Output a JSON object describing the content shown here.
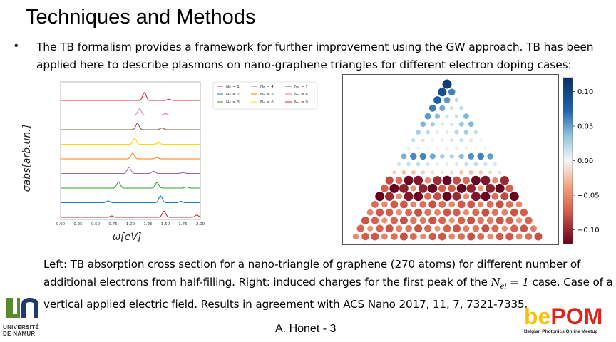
{
  "slide": {
    "title": "Techniques and Methods",
    "bullet": "The TB formalism provides a framework for further improvement using the GW approach. TB has been applied here to describe plasmons on nano-graphene triangles for different electron doping cases:",
    "caption": {
      "part1": "Left: TB absorption cross section for a nano-triangle of graphene (270 atoms) for different number of additional electrons from half-filling. Right: induced charges for the first peak of the ",
      "math": "N",
      "math_sub": "el",
      "math_rest": " = 1",
      "part2": " case. Case of a vertical applied electric field. Results in agreement with ACS Nano 2017, 11, 7, 7321-7335."
    },
    "footer": "A. Honet  - 3"
  },
  "logos": {
    "left": {
      "line1": "UNIVERSITÉ",
      "line2": "DE NAMUR"
    },
    "right": {
      "be": "be",
      "pom": "POM",
      "tagline": "Belgian Photonics Online Meetup"
    }
  },
  "chart_data": [
    {
      "type": "line",
      "ylabel": "σabs[arb.un.]",
      "xlabel": "ω[eV]",
      "xticks": [
        "0.00",
        "0.25",
        "0.50",
        "0.75",
        "1.00",
        "1.25",
        "1.50",
        "1.75",
        "2.00"
      ],
      "xlim": [
        0,
        2
      ],
      "series": [
        {
          "name": "Nₑₗ = 1",
          "color": "#d62728",
          "peaks": [
            [
              0.73,
              0.12
            ],
            [
              1.48,
              0.55
            ],
            [
              1.95,
              0.2
            ]
          ]
        },
        {
          "name": "Nₑₗ = 2",
          "color": "#1f77b4",
          "peaks": [
            [
              0.68,
              0.15
            ],
            [
              1.43,
              0.6
            ],
            [
              1.72,
              0.12
            ]
          ]
        },
        {
          "name": "Nₑₗ = 3",
          "color": "#2ca02c",
          "peaks": [
            [
              0.83,
              0.55
            ],
            [
              1.38,
              0.5
            ],
            [
              1.8,
              0.1
            ]
          ]
        },
        {
          "name": "Nₑₗ = 4",
          "color": "#9467bd",
          "peaks": [
            [
              0.98,
              0.55
            ],
            [
              1.33,
              0.2
            ],
            [
              1.75,
              0.08
            ]
          ]
        },
        {
          "name": "Nₑₗ = 5",
          "color": "#ff7f0e",
          "peaks": [
            [
              1.03,
              0.5
            ],
            [
              1.38,
              0.12
            ]
          ]
        },
        {
          "name": "Nₑₗ = 6",
          "color": "#ffd700",
          "peaks": [
            [
              1.06,
              0.5
            ],
            [
              1.4,
              0.12
            ]
          ]
        },
        {
          "name": "Nₑₗ = 7",
          "color": "#8c564b",
          "peaks": [
            [
              1.1,
              0.55
            ],
            [
              1.45,
              0.15
            ]
          ]
        },
        {
          "name": "Nₑₗ = 8",
          "color": "#e377c2",
          "peaks": [
            [
              1.13,
              0.55
            ],
            [
              1.5,
              0.12
            ]
          ]
        },
        {
          "name": "Nₑₗ = 9",
          "color": "#d62728",
          "peaks": [
            [
              1.2,
              0.7
            ],
            [
              1.55,
              0.1
            ]
          ]
        }
      ]
    },
    {
      "type": "scatter",
      "colorbar": {
        "ticks": [
          "0.10",
          "0.05",
          "0.00",
          "−0.05",
          "−0.10"
        ],
        "range": [
          -0.12,
          0.12
        ]
      }
    }
  ]
}
